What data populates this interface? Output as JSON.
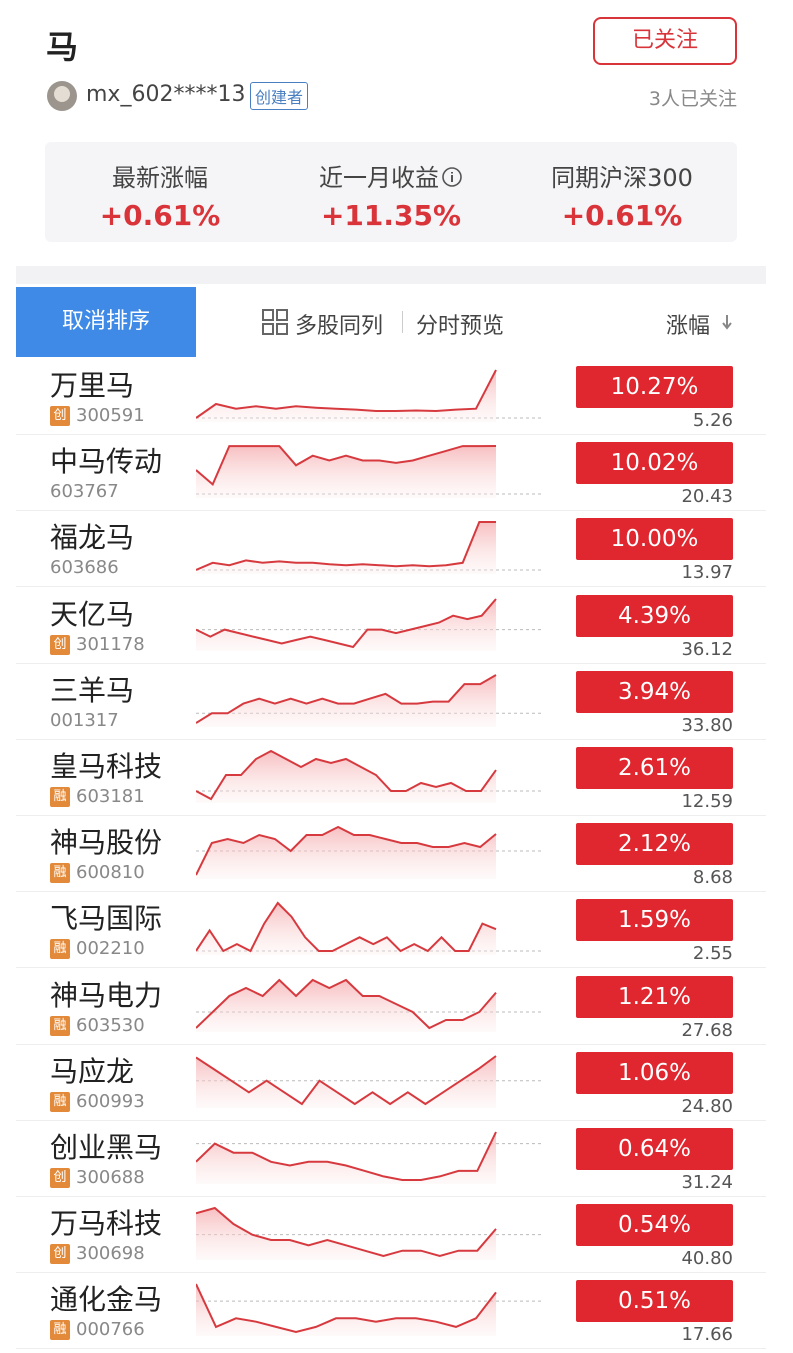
{
  "header": {
    "title": "马",
    "follow_button": "已关注",
    "user": "mx_602****13",
    "badge": "创建者",
    "followers": "3人已关注"
  },
  "stats": [
    {
      "label": "最新涨幅",
      "value": "+0.61%"
    },
    {
      "label": "近一月收益",
      "value": "+11.35%"
    },
    {
      "label": "同期沪深300",
      "value": "+0.61%"
    }
  ],
  "toolbar": {
    "sort_button": "取消排序",
    "multi": "多股同列",
    "preview": "分时预览",
    "sort_column": "涨幅"
  },
  "stocks": [
    {
      "name": "万里马",
      "tag": "创",
      "code": "300591",
      "change": "10.27%",
      "price": "5.26",
      "intraday": [
        0,
        3,
        2,
        2.5,
        2,
        2.5,
        2.2,
        2,
        1.8,
        1.5,
        1.5,
        1.6,
        1.5,
        1.8,
        2,
        10.27
      ]
    },
    {
      "name": "中马传动",
      "code": "603767",
      "change": "10.02%",
      "price": "20.43",
      "intraday": [
        5,
        2,
        10,
        10,
        10,
        10,
        6,
        8,
        7,
        8,
        7,
        7,
        6.5,
        7,
        8,
        9,
        10,
        10,
        10.02
      ]
    },
    {
      "name": "福龙马",
      "code": "603686",
      "change": "10.00%",
      "price": "13.97",
      "intraday": [
        0,
        1.5,
        1,
        2,
        1.5,
        1.8,
        1.5,
        1.5,
        1.2,
        1,
        1.2,
        1,
        0.8,
        1,
        0.8,
        1,
        1.5,
        10,
        10
      ]
    },
    {
      "name": "天亿马",
      "tag": "创",
      "code": "301178",
      "change": "4.39%",
      "price": "36.12",
      "intraday": [
        0,
        -1,
        0,
        -0.5,
        -1,
        -1.5,
        -2,
        -1.5,
        -1,
        -1.5,
        -2,
        -2.5,
        0,
        0,
        -0.5,
        0,
        0.5,
        1,
        2,
        1.5,
        2,
        4.39
      ]
    },
    {
      "name": "三羊马",
      "code": "001317",
      "change": "3.94%",
      "price": "33.80",
      "intraday": [
        -1,
        0,
        0,
        1,
        1.5,
        1,
        1.5,
        1,
        1.5,
        1,
        1,
        1.5,
        2,
        1,
        1,
        1.2,
        1.2,
        3,
        3,
        3.94
      ]
    },
    {
      "name": "皇马科技",
      "tag": "融",
      "code": "603181",
      "change": "2.61%",
      "price": "12.59",
      "intraday": [
        0,
        -1,
        2,
        2,
        4,
        5,
        4,
        3,
        4,
        3.5,
        4,
        3,
        2,
        0,
        0,
        1,
        0.5,
        1,
        0,
        0,
        2.61
      ]
    },
    {
      "name": "神马股份",
      "tag": "融",
      "code": "600810",
      "change": "2.12%",
      "price": "8.68",
      "intraday": [
        -3,
        1,
        1.5,
        1,
        2,
        1.5,
        0,
        2,
        2,
        3,
        2,
        2,
        1.5,
        1,
        1,
        0.5,
        0.5,
        1,
        0.5,
        2.12
      ]
    },
    {
      "name": "飞马国际",
      "tag": "融",
      "code": "002210",
      "change": "1.59%",
      "price": "2.55",
      "intraday": [
        0,
        1.5,
        0,
        0.5,
        0,
        2,
        3.5,
        2.5,
        1,
        0,
        0,
        0.5,
        1,
        0.5,
        1,
        0,
        0.5,
        0,
        1,
        0,
        0,
        2,
        1.59
      ]
    },
    {
      "name": "神马电力",
      "tag": "融",
      "code": "603530",
      "change": "1.21%",
      "price": "27.68",
      "intraday": [
        -1,
        0,
        1,
        1.5,
        1,
        2,
        1,
        2,
        1.5,
        2,
        1,
        1,
        0.5,
        0,
        -1,
        -0.5,
        -0.5,
        0,
        1.21
      ]
    },
    {
      "name": "马应龙",
      "tag": "融",
      "code": "600993",
      "change": "1.06%",
      "price": "24.80",
      "intraday": [
        1,
        0.5,
        0,
        -0.5,
        0,
        -0.5,
        -1,
        0,
        -0.5,
        -1,
        -0.5,
        -1,
        -0.5,
        -1,
        -0.5,
        0,
        0.5,
        1.06
      ]
    },
    {
      "name": "创业黑马",
      "tag": "创",
      "code": "300688",
      "change": "0.64%",
      "price": "31.24",
      "intraday": [
        -1,
        0,
        -0.5,
        -0.5,
        -1,
        -1.2,
        -1,
        -1,
        -1.2,
        -1.5,
        -1.8,
        -2,
        -2,
        -1.8,
        -1.5,
        -1.5,
        0.64
      ]
    },
    {
      "name": "万马科技",
      "tag": "创",
      "code": "300698",
      "change": "0.54%",
      "price": "40.80",
      "intraday": [
        2,
        2.5,
        1,
        0,
        -0.5,
        -0.5,
        -1,
        -0.5,
        -1,
        -1.5,
        -2,
        -1.5,
        -1.5,
        -2,
        -1.5,
        -1.5,
        0.54
      ]
    },
    {
      "name": "通化金马",
      "tag": "融",
      "code": "000766",
      "change": "0.51%",
      "price": "17.66",
      "intraday": [
        1,
        -1.5,
        -1,
        -1.2,
        -1.5,
        -1.8,
        -1.5,
        -1,
        -1,
        -1.2,
        -1,
        -1,
        -1.2,
        -1.5,
        -1,
        0.51
      ]
    }
  ]
}
